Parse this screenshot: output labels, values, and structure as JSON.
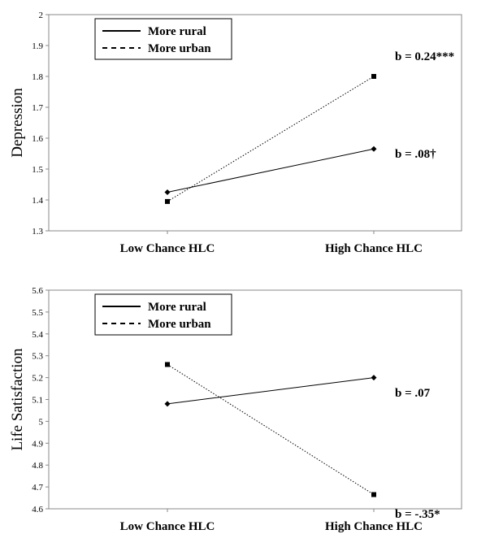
{
  "chart_data": [
    {
      "type": "line",
      "ylabel": "Depression",
      "categories": [
        "Low Chance HLC",
        "High Chance HLC"
      ],
      "ylim": [
        1.3,
        2.0
      ],
      "yticks": [
        "1.3",
        "1.4",
        "1.5",
        "1.6",
        "1.7",
        "1.8",
        "1.9",
        "2"
      ],
      "legend_position": "top-left",
      "series": [
        {
          "name": "More rural",
          "values": [
            1.425,
            1.565
          ],
          "marker": "diamond",
          "dash": "solid"
        },
        {
          "name": "More urban",
          "values": [
            1.395,
            1.8
          ],
          "marker": "square",
          "dash": "dotted"
        }
      ],
      "annotations": [
        {
          "text": "b = 0.24***",
          "series": 1
        },
        {
          "text": "b = .08†",
          "series": 0
        }
      ]
    },
    {
      "type": "line",
      "ylabel": "Life Satisfaction",
      "categories": [
        "Low Chance HLC",
        "High Chance HLC"
      ],
      "ylim": [
        4.6,
        5.6
      ],
      "yticks": [
        "4.6",
        "4.7",
        "4.8",
        "4.9",
        "5",
        "5.1",
        "5.2",
        "5.3",
        "5.4",
        "5.5",
        "5.6"
      ],
      "legend_position": "top-left",
      "series": [
        {
          "name": "More rural",
          "values": [
            5.08,
            5.2
          ],
          "marker": "diamond",
          "dash": "solid"
        },
        {
          "name": "More urban",
          "values": [
            5.26,
            4.665
          ],
          "marker": "square",
          "dash": "dotted"
        }
      ],
      "annotations": [
        {
          "text": "b = .07",
          "series": 0
        },
        {
          "text": "b = -.35*",
          "series": 1
        }
      ]
    }
  ]
}
